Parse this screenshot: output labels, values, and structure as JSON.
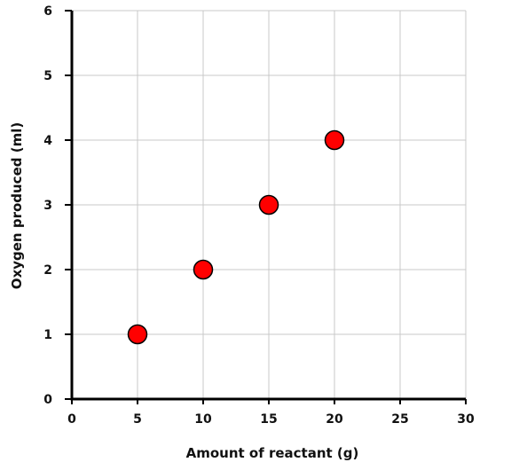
{
  "chart_data": {
    "type": "scatter",
    "title": "",
    "xlabel": "Amount of reactant (g)",
    "ylabel": "Oxygen produced (ml)",
    "xlim": [
      0,
      30
    ],
    "ylim": [
      0,
      6
    ],
    "xticks": [
      "0",
      "5",
      "10",
      "15",
      "20",
      "25",
      "30"
    ],
    "yticks": [
      "0",
      "1",
      "2",
      "3",
      "4",
      "5",
      "6"
    ],
    "grid": true,
    "marker_color": "#ff0000",
    "marker_outline": "#000000",
    "gridline_color": "#c8c8c8",
    "x": [
      5,
      10,
      15,
      20
    ],
    "y": [
      1,
      2,
      3,
      4
    ]
  }
}
